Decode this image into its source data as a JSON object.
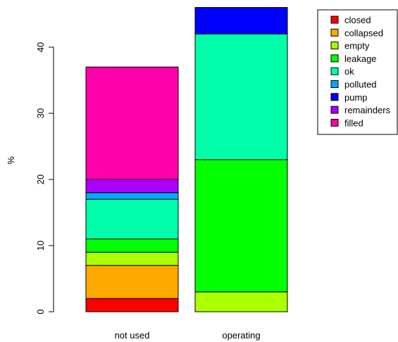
{
  "chart_data": {
    "type": "bar",
    "stacked": true,
    "categories": [
      "not used",
      "operating"
    ],
    "ylabel": "%",
    "ylim": [
      0,
      46
    ],
    "yticks": [
      0,
      10,
      20,
      30,
      40
    ],
    "grid": false,
    "legend_position": "top-right",
    "series": [
      {
        "name": "closed",
        "color": "#FF0000",
        "values": [
          2,
          0
        ]
      },
      {
        "name": "collapsed",
        "color": "#FFAA00",
        "values": [
          5,
          0
        ]
      },
      {
        "name": "empty",
        "color": "#AAFF00",
        "values": [
          2,
          3
        ]
      },
      {
        "name": "leakage",
        "color": "#00FF00",
        "values": [
          2,
          20
        ]
      },
      {
        "name": "ok",
        "color": "#00FFAA",
        "values": [
          6,
          19
        ]
      },
      {
        "name": "polluted",
        "color": "#00AAFF",
        "values": [
          1,
          0
        ]
      },
      {
        "name": "pump",
        "color": "#0000FF",
        "values": [
          0,
          4
        ]
      },
      {
        "name": "remainders",
        "color": "#AA00FF",
        "values": [
          2,
          0
        ]
      },
      {
        "name": "filled",
        "color": "#FF00AA",
        "values": [
          17,
          0
        ]
      }
    ]
  }
}
